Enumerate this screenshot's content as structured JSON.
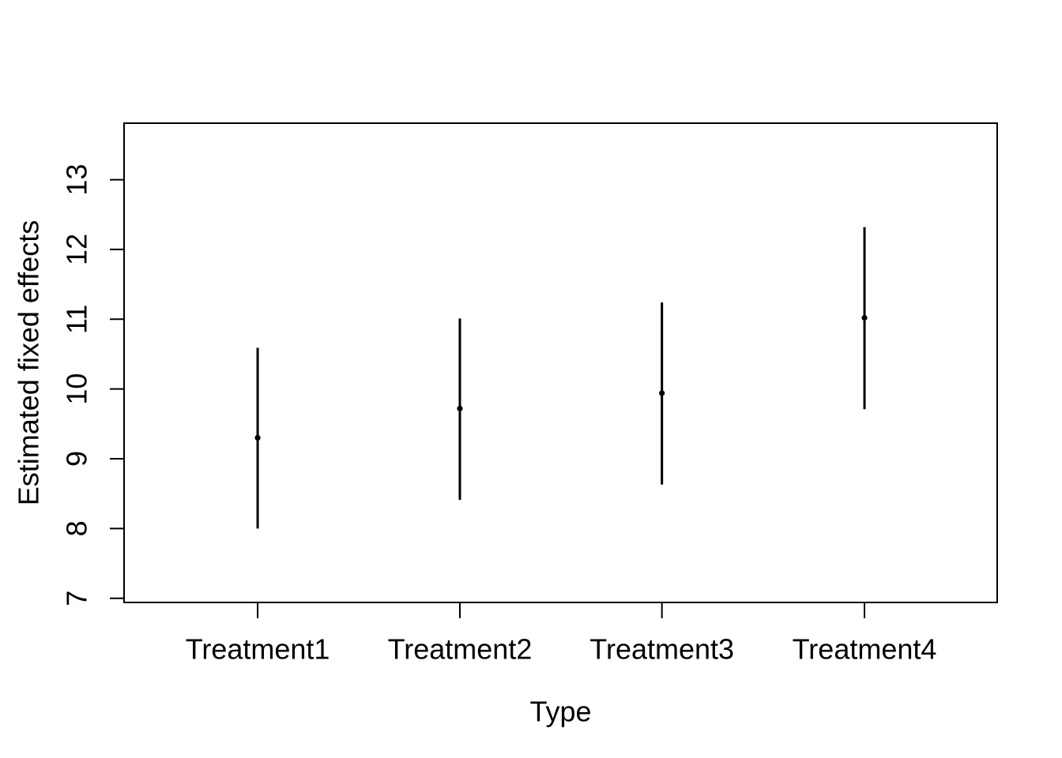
{
  "chart_data": {
    "type": "scatter",
    "subtype": "point-estimates-with-error-bars",
    "title": "",
    "xlabel": "Type",
    "ylabel": "Estimated fixed effects",
    "categories": [
      "Treatment1",
      "Treatment2",
      "Treatment3",
      "Treatment4"
    ],
    "series": [
      {
        "name": "Estimated fixed effects",
        "values": [
          9.3,
          9.72,
          9.94,
          11.02
        ],
        "ci_lower": [
          8.0,
          8.41,
          8.63,
          9.71
        ],
        "ci_upper": [
          10.59,
          11.01,
          11.24,
          12.32
        ]
      }
    ],
    "y_ticks": [
      7,
      8,
      9,
      10,
      11,
      12,
      13
    ],
    "ylim": [
      6.94,
      13.81
    ],
    "grid": false,
    "legend": "none",
    "marker": "filled-circle",
    "colors": {
      "foreground": "#000000",
      "background": "#FFFFFF"
    }
  }
}
